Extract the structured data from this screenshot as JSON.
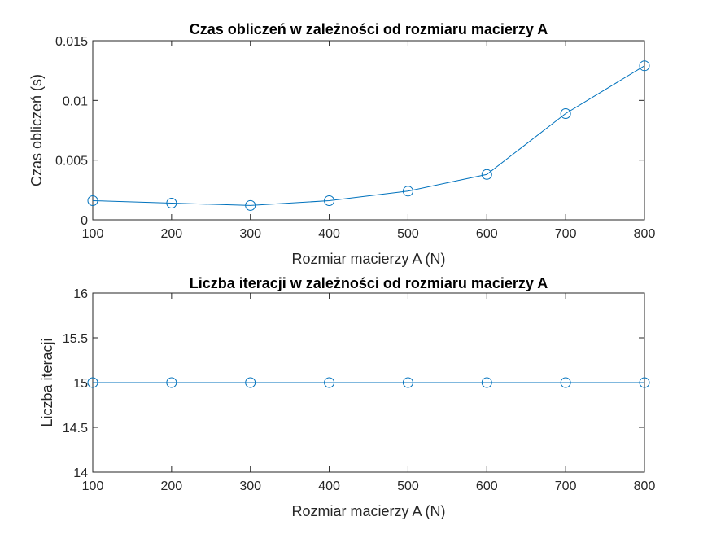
{
  "chart_data": [
    {
      "type": "line",
      "title": "Czas obliczeń w zależności od rozmiaru macierzy A",
      "xlabel": "Rozmiar macierzy A (N)",
      "ylabel": "Czas obliczeń (s)",
      "xlim": [
        100,
        800
      ],
      "ylim": [
        0,
        0.015
      ],
      "xticks": [
        100,
        200,
        300,
        400,
        500,
        600,
        700,
        800
      ],
      "xtick_labels": [
        "100",
        "200",
        "300",
        "400",
        "500",
        "600",
        "700",
        "800"
      ],
      "yticks": [
        0,
        0.005,
        0.01,
        0.015
      ],
      "ytick_labels": [
        "0",
        "0.005",
        "0.01",
        "0.015"
      ],
      "grid": false,
      "marker": "circle",
      "color": "#0072BD",
      "x": [
        100,
        200,
        300,
        400,
        500,
        600,
        700,
        800
      ],
      "y": [
        0.0016,
        0.0014,
        0.0012,
        0.0016,
        0.0024,
        0.0038,
        0.0089,
        0.0129
      ]
    },
    {
      "type": "line",
      "title": "Liczba iteracji w zależności od rozmiaru macierzy A",
      "xlabel": "Rozmiar macierzy A (N)",
      "ylabel": "Liczba iteracji",
      "xlim": [
        100,
        800
      ],
      "ylim": [
        14,
        16
      ],
      "xticks": [
        100,
        200,
        300,
        400,
        500,
        600,
        700,
        800
      ],
      "xtick_labels": [
        "100",
        "200",
        "300",
        "400",
        "500",
        "600",
        "700",
        "800"
      ],
      "yticks": [
        14,
        14.5,
        15,
        15.5,
        16
      ],
      "ytick_labels": [
        "14",
        "14.5",
        "15",
        "15.5",
        "16"
      ],
      "grid": false,
      "marker": "circle",
      "color": "#0072BD",
      "x": [
        100,
        200,
        300,
        400,
        500,
        600,
        700,
        800
      ],
      "y": [
        15,
        15,
        15,
        15,
        15,
        15,
        15,
        15
      ]
    }
  ]
}
